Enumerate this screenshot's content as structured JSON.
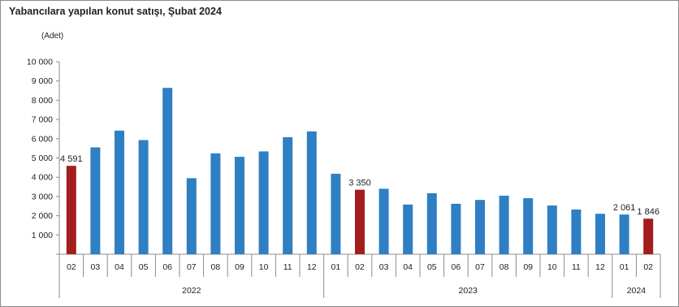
{
  "title": "Yabancılara yapılan konut satışı, Şubat 2024",
  "unit": "(Adet)",
  "colors": {
    "default": "#2e7fc4",
    "highlight": "#a31d1d"
  },
  "chart_data": {
    "type": "bar",
    "ylim": [
      0,
      10000
    ],
    "yticks": [
      "10 000",
      "9 000",
      "8 000",
      "7 000",
      "6 000",
      "5 000",
      "4 000",
      "3 000",
      "2 000",
      "1 000"
    ],
    "categories": [
      "02",
      "03",
      "04",
      "05",
      "06",
      "07",
      "08",
      "09",
      "10",
      "11",
      "12",
      "01",
      "02",
      "03",
      "04",
      "05",
      "06",
      "07",
      "08",
      "09",
      "10",
      "11",
      "12",
      "01",
      "02"
    ],
    "values": [
      4591,
      5550,
      6420,
      5930,
      8640,
      3950,
      5240,
      5060,
      5340,
      6080,
      6380,
      4180,
      3350,
      3400,
      2580,
      3170,
      2620,
      2820,
      3040,
      2910,
      2530,
      2320,
      2100,
      2061,
      1846
    ],
    "highlight": [
      0,
      12,
      24
    ],
    "year_groups": [
      {
        "label": "2022",
        "start": 0,
        "end": 10
      },
      {
        "label": "2023",
        "start": 11,
        "end": 22
      },
      {
        "label": "2024",
        "start": 23,
        "end": 24
      }
    ],
    "data_labels": [
      {
        "index": 0,
        "text": "4 591"
      },
      {
        "index": 12,
        "text": "3 350"
      },
      {
        "index": 23,
        "text": "2 061"
      },
      {
        "index": 24,
        "text": "1 846"
      }
    ],
    "grid": false,
    "legend": "none"
  }
}
